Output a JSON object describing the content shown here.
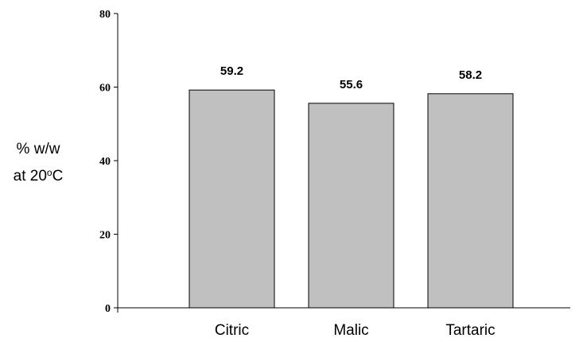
{
  "chart_data": {
    "type": "bar",
    "categories": [
      "Citric",
      "Malic",
      "Tartaric"
    ],
    "values": [
      59.2,
      55.6,
      58.2
    ],
    "data_labels": [
      "59.2",
      "55.6",
      "58.2"
    ],
    "ylabel": {
      "line1": "% w/w",
      "line2_prefix": "at 20",
      "line2_sup": "o",
      "line2_suffix": "C"
    },
    "ylim": [
      0,
      80
    ],
    "yticks": [
      0,
      20,
      40,
      60,
      80
    ],
    "grid": false,
    "legend": "none",
    "bar_color": "#c0c0c0",
    "bar_stroke": "#000000"
  }
}
